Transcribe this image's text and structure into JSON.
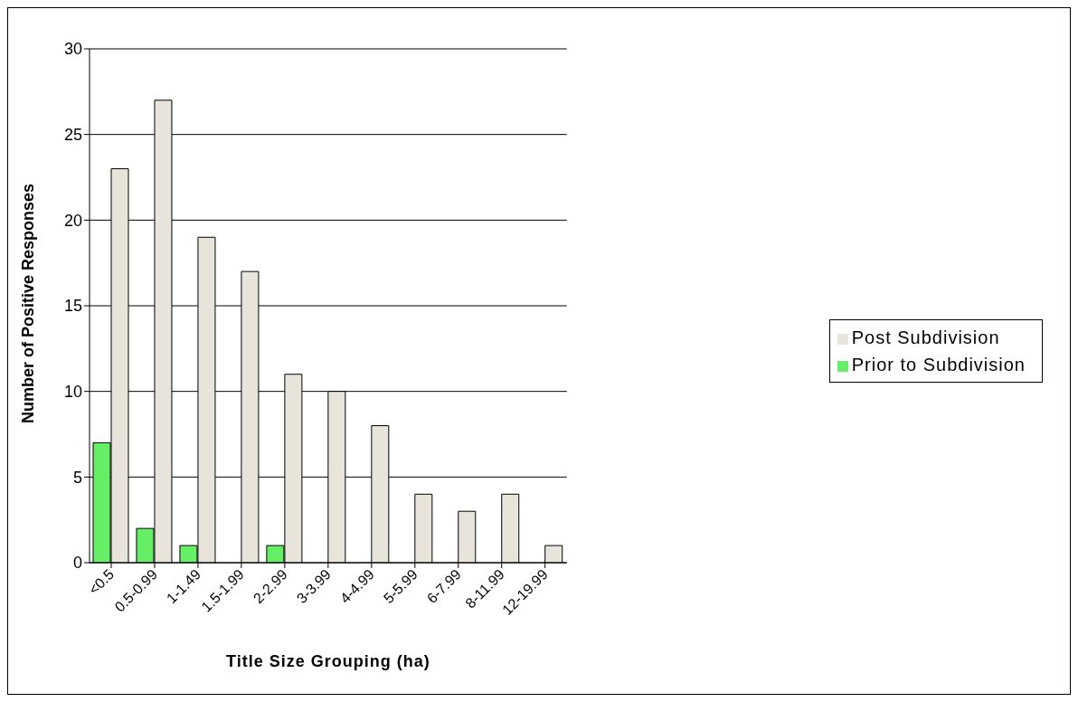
{
  "chart_data": {
    "type": "bar",
    "xlabel": "Title Size Grouping (ha)",
    "ylabel": "Number of Positive Responses",
    "categories": [
      "<0.5",
      "0.5-0.99",
      "1-1.49",
      "1.5-1.99",
      "2-2.99",
      "3-3.99",
      "4-4.99",
      "5-5.99",
      "6-7.99",
      "8-11.99",
      "12-19.99"
    ],
    "series": [
      {
        "name": "Prior to Subdivision",
        "color": "#66ee66",
        "values": [
          7,
          2,
          1,
          null,
          1,
          null,
          null,
          null,
          null,
          null,
          null
        ]
      },
      {
        "name": "Post Subdivision",
        "color": "#e8e4dc",
        "values": [
          23,
          27,
          19,
          17,
          11,
          10,
          8,
          4,
          3,
          4,
          1
        ]
      }
    ],
    "ylim": [
      0,
      30
    ],
    "yticks": [
      0,
      5,
      10,
      15,
      20,
      25,
      30
    ],
    "grid": "y",
    "legend": "right"
  }
}
